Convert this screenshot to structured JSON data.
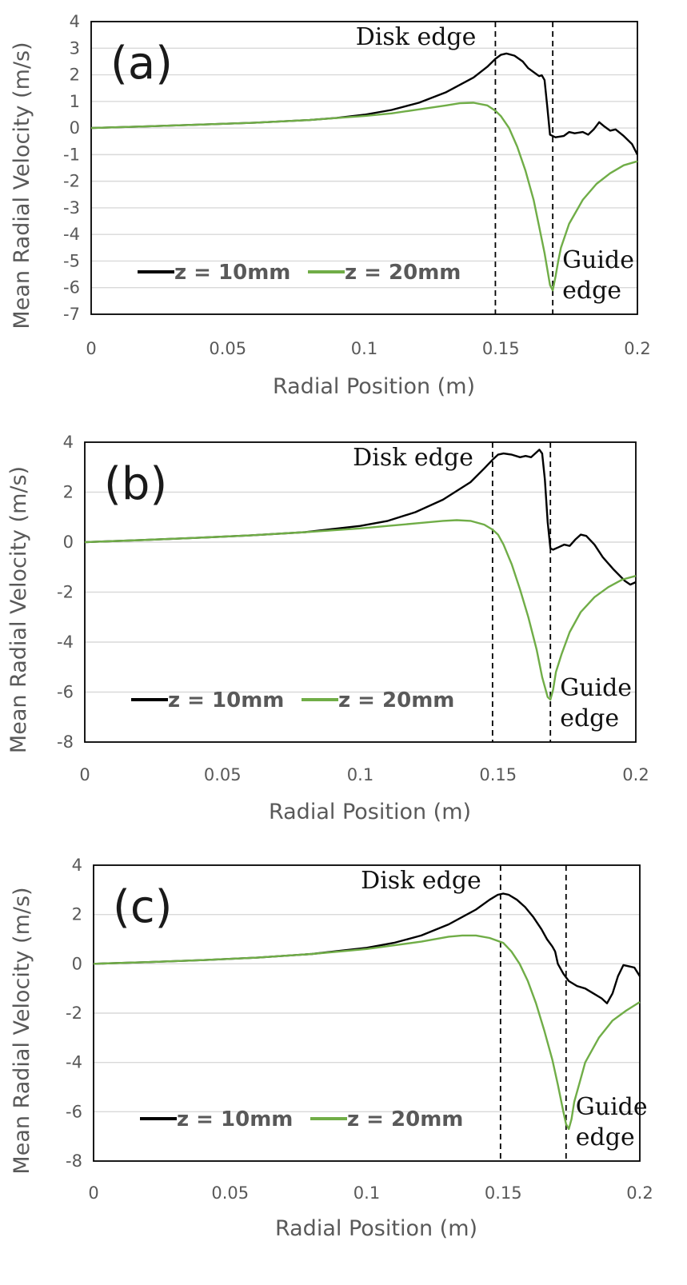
{
  "colors": {
    "z10": "#000000",
    "z20": "#70ad47",
    "grid": "#d9d9d9",
    "tick": "#595959"
  },
  "chart_data": [
    {
      "type": "line",
      "panel_label": "(a)",
      "xlabel": "Radial Position (m)",
      "ylabel": "Mean Radial Velocity (m/s)",
      "xlim": [
        0,
        0.2
      ],
      "ylim": [
        -7,
        4
      ],
      "x_ticks": [
        0,
        0.05,
        0.1,
        0.15,
        0.2
      ],
      "x_tick_labels": [
        "0",
        "0.05",
        "0.1",
        "0.15",
        "0.2"
      ],
      "y_ticks": [
        4,
        3,
        2,
        1,
        0,
        -1,
        -2,
        -3,
        -4,
        -5,
        -6,
        -7
      ],
      "y_tick_labels": [
        "4",
        "3",
        "2",
        "1",
        "0",
        "-1",
        "-2",
        "-3",
        "-4",
        "-5",
        "-6",
        "-7"
      ],
      "grid": true,
      "legend_position": "bottom-left",
      "annotations": [
        {
          "text": "Disk edge",
          "x": 0.148,
          "lines": [
            "Disk edge"
          ]
        },
        {
          "text": "Guide edge",
          "x": 0.169,
          "lines": [
            "Guide",
            "edge"
          ]
        }
      ],
      "series": [
        {
          "name": "z = 10mm",
          "color": "#000000",
          "points": [
            [
              0,
              0
            ],
            [
              0.02,
              0.06
            ],
            [
              0.04,
              0.13
            ],
            [
              0.06,
              0.2
            ],
            [
              0.08,
              0.3
            ],
            [
              0.09,
              0.38
            ],
            [
              0.1,
              0.5
            ],
            [
              0.11,
              0.68
            ],
            [
              0.12,
              0.95
            ],
            [
              0.13,
              1.35
            ],
            [
              0.14,
              1.9
            ],
            [
              0.145,
              2.3
            ],
            [
              0.148,
              2.6
            ],
            [
              0.15,
              2.75
            ],
            [
              0.152,
              2.8
            ],
            [
              0.155,
              2.72
            ],
            [
              0.158,
              2.5
            ],
            [
              0.16,
              2.25
            ],
            [
              0.162,
              2.1
            ],
            [
              0.164,
              1.95
            ],
            [
              0.165,
              1.98
            ],
            [
              0.166,
              1.8
            ],
            [
              0.167,
              0.8
            ],
            [
              0.168,
              -0.25
            ],
            [
              0.17,
              -0.35
            ],
            [
              0.173,
              -0.3
            ],
            [
              0.175,
              -0.15
            ],
            [
              0.177,
              -0.2
            ],
            [
              0.18,
              -0.15
            ],
            [
              0.182,
              -0.25
            ],
            [
              0.184,
              -0.05
            ],
            [
              0.186,
              0.22
            ],
            [
              0.188,
              0.05
            ],
            [
              0.19,
              -0.1
            ],
            [
              0.192,
              -0.05
            ],
            [
              0.195,
              -0.3
            ],
            [
              0.198,
              -0.6
            ],
            [
              0.2,
              -1.0
            ]
          ]
        },
        {
          "name": "z = 20mm",
          "color": "#70ad47",
          "points": [
            [
              0,
              0
            ],
            [
              0.02,
              0.06
            ],
            [
              0.04,
              0.13
            ],
            [
              0.06,
              0.2
            ],
            [
              0.08,
              0.3
            ],
            [
              0.1,
              0.45
            ],
            [
              0.11,
              0.55
            ],
            [
              0.12,
              0.7
            ],
            [
              0.13,
              0.85
            ],
            [
              0.135,
              0.93
            ],
            [
              0.14,
              0.95
            ],
            [
              0.145,
              0.85
            ],
            [
              0.148,
              0.65
            ],
            [
              0.15,
              0.45
            ],
            [
              0.153,
              0.0
            ],
            [
              0.156,
              -0.7
            ],
            [
              0.159,
              -1.6
            ],
            [
              0.162,
              -2.7
            ],
            [
              0.164,
              -3.7
            ],
            [
              0.166,
              -4.7
            ],
            [
              0.167,
              -5.3
            ],
            [
              0.168,
              -5.9
            ],
            [
              0.169,
              -6.1
            ],
            [
              0.17,
              -5.6
            ],
            [
              0.171,
              -5.0
            ],
            [
              0.172,
              -4.5
            ],
            [
              0.175,
              -3.6
            ],
            [
              0.18,
              -2.7
            ],
            [
              0.185,
              -2.1
            ],
            [
              0.19,
              -1.7
            ],
            [
              0.195,
              -1.4
            ],
            [
              0.2,
              -1.25
            ]
          ]
        }
      ]
    },
    {
      "type": "line",
      "panel_label": "(b)",
      "xlabel": "Radial Position (m)",
      "ylabel": "Mean Radial Velocity (m/s)",
      "xlim": [
        0,
        0.2
      ],
      "ylim": [
        -8,
        4
      ],
      "x_ticks": [
        0,
        0.05,
        0.1,
        0.15,
        0.2
      ],
      "x_tick_labels": [
        "0",
        "0.05",
        "0.1",
        "0.15",
        "0.2"
      ],
      "y_ticks": [
        4,
        2,
        0,
        -2,
        -4,
        -6,
        -8
      ],
      "y_tick_labels": [
        "4",
        "2",
        "0",
        "-2",
        "-4",
        "-6",
        "-8"
      ],
      "grid": true,
      "legend_position": "bottom-left",
      "annotations": [
        {
          "text": "Disk edge",
          "x": 0.148,
          "lines": [
            "Disk edge"
          ]
        },
        {
          "text": "Guide edge",
          "x": 0.169,
          "lines": [
            "Guide",
            "edge"
          ]
        }
      ],
      "series": [
        {
          "name": "z = 10mm",
          "color": "#000000",
          "points": [
            [
              0,
              0
            ],
            [
              0.02,
              0.08
            ],
            [
              0.04,
              0.17
            ],
            [
              0.06,
              0.27
            ],
            [
              0.08,
              0.4
            ],
            [
              0.1,
              0.65
            ],
            [
              0.11,
              0.85
            ],
            [
              0.12,
              1.2
            ],
            [
              0.13,
              1.7
            ],
            [
              0.14,
              2.4
            ],
            [
              0.145,
              2.95
            ],
            [
              0.148,
              3.3
            ],
            [
              0.15,
              3.5
            ],
            [
              0.152,
              3.55
            ],
            [
              0.155,
              3.5
            ],
            [
              0.158,
              3.4
            ],
            [
              0.16,
              3.45
            ],
            [
              0.162,
              3.4
            ],
            [
              0.164,
              3.6
            ],
            [
              0.165,
              3.7
            ],
            [
              0.166,
              3.55
            ],
            [
              0.167,
              2.5
            ],
            [
              0.168,
              0.8
            ],
            [
              0.169,
              -0.25
            ],
            [
              0.17,
              -0.3
            ],
            [
              0.172,
              -0.2
            ],
            [
              0.174,
              -0.1
            ],
            [
              0.176,
              -0.15
            ],
            [
              0.178,
              0.1
            ],
            [
              0.18,
              0.3
            ],
            [
              0.182,
              0.25
            ],
            [
              0.185,
              -0.1
            ],
            [
              0.188,
              -0.6
            ],
            [
              0.192,
              -1.1
            ],
            [
              0.196,
              -1.55
            ],
            [
              0.198,
              -1.7
            ],
            [
              0.2,
              -1.6
            ]
          ]
        },
        {
          "name": "z = 20mm",
          "color": "#70ad47",
          "points": [
            [
              0,
              0
            ],
            [
              0.02,
              0.08
            ],
            [
              0.04,
              0.17
            ],
            [
              0.06,
              0.27
            ],
            [
              0.08,
              0.4
            ],
            [
              0.1,
              0.55
            ],
            [
              0.11,
              0.65
            ],
            [
              0.12,
              0.75
            ],
            [
              0.13,
              0.85
            ],
            [
              0.135,
              0.88
            ],
            [
              0.14,
              0.85
            ],
            [
              0.145,
              0.7
            ],
            [
              0.148,
              0.5
            ],
            [
              0.15,
              0.3
            ],
            [
              0.152,
              -0.1
            ],
            [
              0.155,
              -0.9
            ],
            [
              0.158,
              -1.9
            ],
            [
              0.161,
              -3.0
            ],
            [
              0.164,
              -4.3
            ],
            [
              0.166,
              -5.4
            ],
            [
              0.168,
              -6.2
            ],
            [
              0.169,
              -6.3
            ],
            [
              0.17,
              -5.9
            ],
            [
              0.171,
              -5.2
            ],
            [
              0.173,
              -4.5
            ],
            [
              0.176,
              -3.6
            ],
            [
              0.18,
              -2.8
            ],
            [
              0.185,
              -2.2
            ],
            [
              0.19,
              -1.8
            ],
            [
              0.195,
              -1.5
            ],
            [
              0.2,
              -1.35
            ]
          ]
        }
      ]
    },
    {
      "type": "line",
      "panel_label": "(c)",
      "xlabel": "Radial Position (m)",
      "ylabel": "Mean Radial Velocity (m/s)",
      "xlim": [
        0,
        0.2
      ],
      "ylim": [
        -8,
        4
      ],
      "x_ticks": [
        0,
        0.05,
        0.1,
        0.15,
        0.2
      ],
      "x_tick_labels": [
        "0",
        "0.05",
        "0.1",
        "0.15",
        "0.2"
      ],
      "y_ticks": [
        4,
        2,
        0,
        -2,
        -4,
        -6,
        -8
      ],
      "y_tick_labels": [
        "4",
        "2",
        "0",
        "-2",
        "-4",
        "-6",
        "-8"
      ],
      "grid": true,
      "legend_position": "bottom-left",
      "annotations": [
        {
          "text": "Disk edge",
          "x": 0.149,
          "lines": [
            "Disk edge"
          ]
        },
        {
          "text": "Guide edge",
          "x": 0.173,
          "lines": [
            "Guide",
            "edge"
          ]
        }
      ],
      "series": [
        {
          "name": "z = 10mm",
          "color": "#000000",
          "points": [
            [
              0,
              0
            ],
            [
              0.02,
              0.07
            ],
            [
              0.04,
              0.15
            ],
            [
              0.06,
              0.25
            ],
            [
              0.08,
              0.4
            ],
            [
              0.1,
              0.65
            ],
            [
              0.11,
              0.85
            ],
            [
              0.12,
              1.15
            ],
            [
              0.13,
              1.6
            ],
            [
              0.14,
              2.2
            ],
            [
              0.145,
              2.6
            ],
            [
              0.148,
              2.8
            ],
            [
              0.15,
              2.85
            ],
            [
              0.152,
              2.8
            ],
            [
              0.155,
              2.6
            ],
            [
              0.158,
              2.3
            ],
            [
              0.161,
              1.9
            ],
            [
              0.164,
              1.4
            ],
            [
              0.166,
              1.0
            ],
            [
              0.168,
              0.7
            ],
            [
              0.169,
              0.5
            ],
            [
              0.17,
              0.0
            ],
            [
              0.172,
              -0.4
            ],
            [
              0.174,
              -0.7
            ],
            [
              0.177,
              -0.9
            ],
            [
              0.18,
              -1.0
            ],
            [
              0.183,
              -1.2
            ],
            [
              0.186,
              -1.4
            ],
            [
              0.188,
              -1.6
            ],
            [
              0.19,
              -1.2
            ],
            [
              0.192,
              -0.5
            ],
            [
              0.194,
              -0.05
            ],
            [
              0.196,
              -0.1
            ],
            [
              0.198,
              -0.15
            ],
            [
              0.2,
              -0.5
            ]
          ]
        },
        {
          "name": "z = 20mm",
          "color": "#70ad47",
          "points": [
            [
              0,
              0
            ],
            [
              0.02,
              0.07
            ],
            [
              0.04,
              0.15
            ],
            [
              0.06,
              0.25
            ],
            [
              0.08,
              0.4
            ],
            [
              0.1,
              0.6
            ],
            [
              0.11,
              0.75
            ],
            [
              0.12,
              0.9
            ],
            [
              0.13,
              1.1
            ],
            [
              0.135,
              1.15
            ],
            [
              0.14,
              1.15
            ],
            [
              0.145,
              1.05
            ],
            [
              0.15,
              0.85
            ],
            [
              0.153,
              0.5
            ],
            [
              0.156,
              0.0
            ],
            [
              0.159,
              -0.7
            ],
            [
              0.162,
              -1.6
            ],
            [
              0.165,
              -2.7
            ],
            [
              0.168,
              -3.9
            ],
            [
              0.17,
              -4.9
            ],
            [
              0.172,
              -6.0
            ],
            [
              0.173,
              -6.5
            ],
            [
              0.174,
              -6.7
            ],
            [
              0.175,
              -6.3
            ],
            [
              0.176,
              -5.6
            ],
            [
              0.178,
              -4.8
            ],
            [
              0.18,
              -4.0
            ],
            [
              0.185,
              -3.0
            ],
            [
              0.19,
              -2.3
            ],
            [
              0.195,
              -1.9
            ],
            [
              0.2,
              -1.55
            ]
          ]
        }
      ]
    }
  ]
}
